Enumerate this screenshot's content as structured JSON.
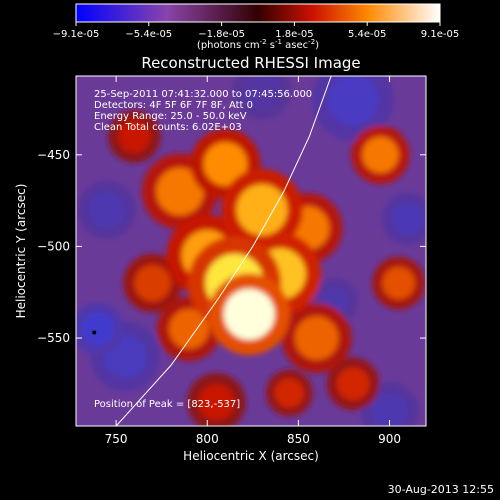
{
  "chart_data": {
    "type": "heatmap",
    "title": "Reconstructed RHESSI Image",
    "xlabel": "Heliocentric X (arcsec)",
    "ylabel": "Heliocentric Y (arcsec)",
    "xlim": [
      728,
      920
    ],
    "ylim": [
      -598,
      -407
    ],
    "x_ticks": [
      750,
      800,
      850,
      900
    ],
    "y_ticks": [
      -450,
      -500,
      -550
    ],
    "colorbar": {
      "ticks": [
        "-9.1e-05",
        "-5.4e-05",
        "-1.8e-05",
        "1.8e-05",
        "5.4e-05",
        "9.1e-05"
      ],
      "label": "(photons cm",
      "label_sup1": "-2",
      "label_mid": " s",
      "label_sup2": "-1",
      "label_end": " asec",
      "label_sup3": "-2",
      "label_close": ")",
      "range": [
        -9.1e-05,
        9.1e-05
      ]
    },
    "info_lines": [
      "25-Sep-2011 07:41:32.000 to 07:45:56.000",
      "Detectors: 4F 5F 6F 7F 8F, Att 0",
      "Energy Range: 25.0 - 50.0 keV",
      "Clean    Total counts: 6.02E+03"
    ],
    "peak_label": "Position of Peak = [823,-537]",
    "peak": [
      823,
      -537
    ],
    "limb_curve": [
      [
        750,
        -598
      ],
      [
        780,
        -565
      ],
      [
        805,
        -530
      ],
      [
        825,
        -500
      ],
      [
        842,
        -470
      ],
      [
        856,
        -440
      ],
      [
        868,
        -407
      ]
    ],
    "blobs": [
      {
        "x": 823,
        "y": -537,
        "v": 1.0,
        "s": 14
      },
      {
        "x": 815,
        "y": -520,
        "v": 0.85,
        "s": 16
      },
      {
        "x": 840,
        "y": -515,
        "v": 0.75,
        "s": 14
      },
      {
        "x": 800,
        "y": -505,
        "v": 0.65,
        "s": 14
      },
      {
        "x": 830,
        "y": -480,
        "v": 0.7,
        "s": 14
      },
      {
        "x": 855,
        "y": -490,
        "v": 0.55,
        "s": 12
      },
      {
        "x": 785,
        "y": -470,
        "v": 0.55,
        "s": 13
      },
      {
        "x": 810,
        "y": -455,
        "v": 0.6,
        "s": 12
      },
      {
        "x": 790,
        "y": -545,
        "v": 0.5,
        "s": 11
      },
      {
        "x": 860,
        "y": -550,
        "v": 0.5,
        "s": 12
      },
      {
        "x": 895,
        "y": -450,
        "v": 0.55,
        "s": 10
      },
      {
        "x": 905,
        "y": -520,
        "v": 0.45,
        "s": 9
      },
      {
        "x": 770,
        "y": -520,
        "v": 0.4,
        "s": 10
      },
      {
        "x": 880,
        "y": -575,
        "v": 0.35,
        "s": 9
      },
      {
        "x": 805,
        "y": -585,
        "v": 0.3,
        "s": 10
      },
      {
        "x": 845,
        "y": -580,
        "v": 0.35,
        "s": 8
      },
      {
        "x": 760,
        "y": -440,
        "v": 0.3,
        "s": 9
      },
      {
        "x": 755,
        "y": -560,
        "v": -0.4,
        "s": 12
      },
      {
        "x": 740,
        "y": -545,
        "v": -0.55,
        "s": 9
      },
      {
        "x": 880,
        "y": -420,
        "v": -0.45,
        "s": 14
      },
      {
        "x": 910,
        "y": -485,
        "v": -0.35,
        "s": 9
      },
      {
        "x": 870,
        "y": -530,
        "v": -0.25,
        "s": 8
      },
      {
        "x": 745,
        "y": -480,
        "v": -0.3,
        "s": 10
      },
      {
        "x": 830,
        "y": -415,
        "v": -0.2,
        "s": 10
      },
      {
        "x": 900,
        "y": -590,
        "v": -0.3,
        "s": 10
      }
    ]
  },
  "footer_date": "30-Aug-2013 12:55"
}
